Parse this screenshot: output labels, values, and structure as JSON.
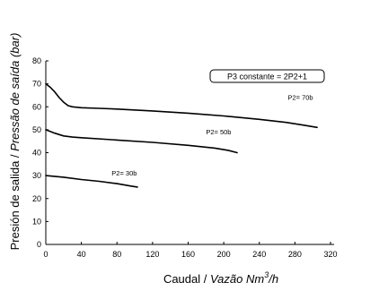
{
  "chart_data": {
    "type": "line",
    "title": "",
    "xlabel_plain": "Caudal / ",
    "xlabel_italic": "Vazão  Nm",
    "xlabel_sup": "3",
    "xlabel_tail": "/h",
    "ylabel_plain": "Presión de salida / ",
    "ylabel_italic": "Pressão de saída (bar)",
    "xlim": [
      0,
      320
    ],
    "ylim": [
      0,
      80
    ],
    "x_ticks": [
      0,
      40,
      80,
      120,
      160,
      200,
      240,
      280,
      320
    ],
    "x_tick_labels": [
      "0",
      "40",
      "80",
      "120",
      "160",
      "200",
      "240",
      "280",
      "320"
    ],
    "y_ticks": [
      0,
      10,
      20,
      30,
      40,
      50,
      60,
      70,
      80
    ],
    "y_tick_labels": [
      "0",
      "10",
      "20",
      "30",
      "40",
      "50",
      "60",
      "70",
      "80"
    ],
    "annotation": "P3 constante = 2P2+1",
    "grid": false,
    "series": [
      {
        "name": "P2= 70b",
        "x": [
          0,
          5,
          10,
          15,
          20,
          25,
          30,
          40,
          60,
          80,
          120,
          160,
          200,
          240,
          270,
          290,
          305
        ],
        "y": [
          70,
          68.5,
          66.5,
          64,
          62,
          60.5,
          60,
          59.6,
          59.3,
          59,
          58.2,
          57.2,
          56,
          54.5,
          53.2,
          52,
          51
        ]
      },
      {
        "name": "P2= 50b",
        "x": [
          0,
          10,
          20,
          30,
          40,
          80,
          120,
          160,
          190,
          205,
          215
        ],
        "y": [
          50,
          48.5,
          47.3,
          46.8,
          46.5,
          45.5,
          44.5,
          43.2,
          42,
          41,
          40
        ]
      },
      {
        "name": "P2= 30b",
        "x": [
          0,
          20,
          40,
          60,
          80,
          95,
          103
        ],
        "y": [
          30,
          29.3,
          28.3,
          27.5,
          26.5,
          25.5,
          25
        ]
      }
    ]
  }
}
